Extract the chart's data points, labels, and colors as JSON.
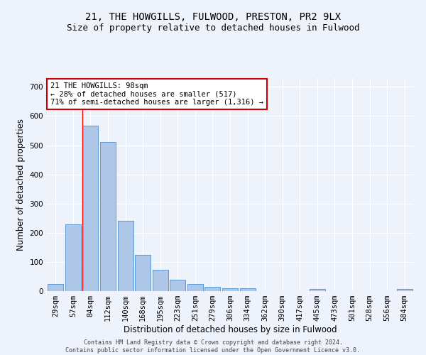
{
  "title": "21, THE HOWGILLS, FULWOOD, PRESTON, PR2 9LX",
  "subtitle": "Size of property relative to detached houses in Fulwood",
  "xlabel": "Distribution of detached houses by size in Fulwood",
  "ylabel": "Number of detached properties",
  "bar_categories": [
    "29sqm",
    "57sqm",
    "84sqm",
    "112sqm",
    "140sqm",
    "168sqm",
    "195sqm",
    "223sqm",
    "251sqm",
    "279sqm",
    "306sqm",
    "334sqm",
    "362sqm",
    "390sqm",
    "417sqm",
    "445sqm",
    "473sqm",
    "501sqm",
    "528sqm",
    "556sqm",
    "584sqm"
  ],
  "bar_values": [
    25,
    228,
    568,
    510,
    240,
    125,
    72,
    40,
    25,
    15,
    10,
    10,
    0,
    0,
    0,
    8,
    0,
    0,
    0,
    0,
    8
  ],
  "bar_color": "#aec6e8",
  "bar_edge_color": "#5b9bd5",
  "ylim": [
    0,
    730
  ],
  "yticks": [
    0,
    100,
    200,
    300,
    400,
    500,
    600,
    700
  ],
  "annotation_text": "21 THE HOWGILLS: 98sqm\n← 28% of detached houses are smaller (517)\n71% of semi-detached houses are larger (1,316) →",
  "annotation_box_facecolor": "#ffffff",
  "annotation_box_edgecolor": "#cc0000",
  "red_line_bar_index": 2,
  "background_color": "#eef2fb",
  "grid_color": "#ffffff",
  "title_fontsize": 10,
  "subtitle_fontsize": 9,
  "axis_label_fontsize": 8.5,
  "tick_fontsize": 7.5,
  "annot_fontsize": 7.5,
  "footer_line1": "Contains HM Land Registry data © Crown copyright and database right 2024.",
  "footer_line2": "Contains public sector information licensed under the Open Government Licence v3.0."
}
